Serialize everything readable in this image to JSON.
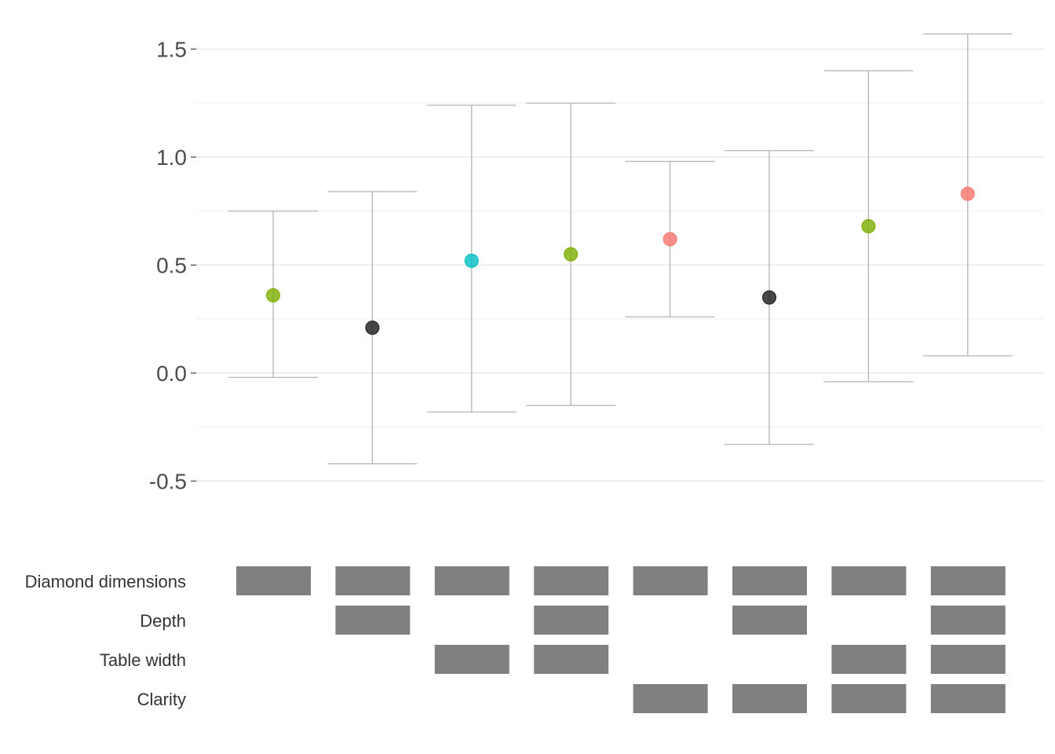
{
  "chart_data": {
    "type": "scatter",
    "title": "",
    "xlabel": "",
    "ylabel": "",
    "ylim": [
      -0.72,
      1.62
    ],
    "y_ticks": [
      -0.5,
      0.0,
      0.5,
      1.0,
      1.5
    ],
    "y_tick_labels": [
      "-0.5",
      "0.0",
      "0.5",
      "1.0",
      "1.5"
    ],
    "grid": true,
    "error_bar_color": "#b3b3b3",
    "points": [
      {
        "estimate": 0.36,
        "lower": -0.02,
        "upper": 0.75,
        "color": "#7CAE00"
      },
      {
        "estimate": 0.21,
        "lower": -0.42,
        "upper": 0.84,
        "color": "#1a1a1a"
      },
      {
        "estimate": 0.52,
        "lower": -0.18,
        "upper": 1.24,
        "color": "#00BFC4"
      },
      {
        "estimate": 0.55,
        "lower": -0.15,
        "upper": 1.25,
        "color": "#7CAE00"
      },
      {
        "estimate": 0.62,
        "lower": 0.26,
        "upper": 0.98,
        "color": "#F8766D"
      },
      {
        "estimate": 0.35,
        "lower": -0.33,
        "upper": 1.03,
        "color": "#1a1a1a"
      },
      {
        "estimate": 0.68,
        "lower": -0.04,
        "upper": 1.4,
        "color": "#7CAE00"
      },
      {
        "estimate": 0.83,
        "lower": 0.08,
        "upper": 1.57,
        "color": "#F8766D"
      }
    ],
    "indicator_rows": [
      "Diamond dimensions",
      "Depth",
      "Table width",
      "Clarity"
    ],
    "indicator_matrix": [
      [
        1,
        1,
        1,
        1,
        1,
        1,
        1,
        1
      ],
      [
        0,
        1,
        0,
        1,
        0,
        1,
        0,
        1
      ],
      [
        0,
        0,
        1,
        1,
        0,
        0,
        1,
        1
      ],
      [
        0,
        0,
        0,
        0,
        1,
        1,
        1,
        1
      ]
    ],
    "indicator_color": "#808080"
  }
}
